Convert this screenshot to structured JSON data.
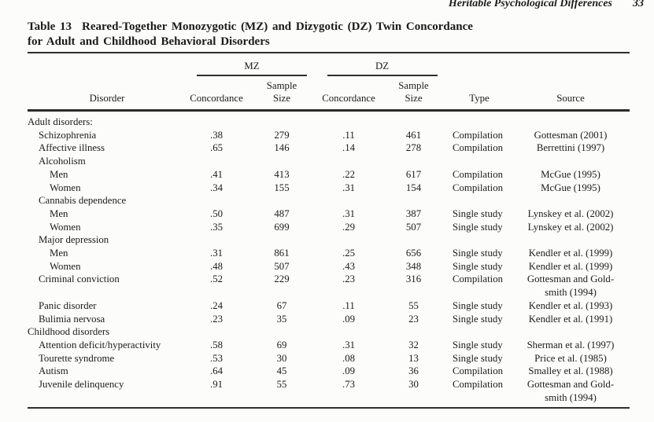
{
  "page": {
    "running_head": "Heritable Psychological Differences",
    "page_number": "33"
  },
  "table": {
    "label": "Table 13",
    "title_line1": "Reared-Together Monozygotic (MZ) and Dizygotic (DZ) Twin Concordance",
    "title_line2": "for Adult and Childhood Behavioral Disorders",
    "group_mz": "MZ",
    "group_dz": "DZ",
    "headers": {
      "disorder": "Disorder",
      "mz_concordance": "Concordance",
      "dz_concordance": "Concordance",
      "mz_sample": "Sample",
      "mz_size": "Size",
      "dz_sample": "Sample",
      "dz_size": "Size",
      "type": "Type",
      "source": "Source"
    },
    "rows": [
      {
        "indent": 0,
        "label": "Adult disorders:"
      },
      {
        "indent": 1,
        "label": "Schizophrenia",
        "mz_c": ".38",
        "mz_n": "279",
        "dz_c": ".11",
        "dz_n": "461",
        "type": "Compilation",
        "source": "Gottesman (2001)"
      },
      {
        "indent": 1,
        "label": "Affective illness",
        "mz_c": ".65",
        "mz_n": "146",
        "dz_c": ".14",
        "dz_n": "278",
        "type": "Compilation",
        "source": "Berrettini (1997)"
      },
      {
        "indent": 1,
        "label": "Alcoholism"
      },
      {
        "indent": 2,
        "label": "Men",
        "mz_c": ".41",
        "mz_n": "413",
        "dz_c": ".22",
        "dz_n": "617",
        "type": "Compilation",
        "source": "McGue (1995)"
      },
      {
        "indent": 2,
        "label": "Women",
        "mz_c": ".34",
        "mz_n": "155",
        "dz_c": ".31",
        "dz_n": "154",
        "type": "Compilation",
        "source": "McGue (1995)"
      },
      {
        "indent": 1,
        "label": "Cannabis dependence"
      },
      {
        "indent": 2,
        "label": "Men",
        "mz_c": ".50",
        "mz_n": "487",
        "dz_c": ".31",
        "dz_n": "387",
        "type": "Single study",
        "source": "Lynskey et al. (2002)"
      },
      {
        "indent": 2,
        "label": "Women",
        "mz_c": ".35",
        "mz_n": "699",
        "dz_c": ".29",
        "dz_n": "507",
        "type": "Single study",
        "source": "Lynskey et al. (2002)"
      },
      {
        "indent": 1,
        "label": "Major depression"
      },
      {
        "indent": 2,
        "label": "Men",
        "mz_c": ".31",
        "mz_n": "861",
        "dz_c": ".25",
        "dz_n": "656",
        "type": "Single study",
        "source": "Kendler et al. (1999)"
      },
      {
        "indent": 2,
        "label": "Women",
        "mz_c": ".48",
        "mz_n": "507",
        "dz_c": ".43",
        "dz_n": "348",
        "type": "Single study",
        "source": "Kendler et al. (1999)"
      },
      {
        "indent": 1,
        "label": "Criminal conviction",
        "mz_c": ".52",
        "mz_n": "229",
        "dz_c": ".23",
        "dz_n": "316",
        "type": "Compilation",
        "source": "Gottesman and Gold-",
        "source2": "smith (1994)"
      },
      {
        "indent": 1,
        "label": "Panic disorder",
        "mz_c": ".24",
        "mz_n": "67",
        "dz_c": ".11",
        "dz_n": "55",
        "type": "Single study",
        "source": "Kendler et al. (1993)"
      },
      {
        "indent": 1,
        "label": "Bulimia nervosa",
        "mz_c": ".23",
        "mz_n": "35",
        "dz_c": ".09",
        "dz_n": "23",
        "type": "Single study",
        "source": "Kendler et al. (1991)"
      },
      {
        "indent": 0,
        "label": "Childhood disorders"
      },
      {
        "indent": 1,
        "label": "Attention deficit/hyperactivity",
        "mz_c": ".58",
        "mz_n": "69",
        "dz_c": ".31",
        "dz_n": "32",
        "type": "Single study",
        "source": "Sherman et al. (1997)"
      },
      {
        "indent": 1,
        "label": "Tourette syndrome",
        "mz_c": ".53",
        "mz_n": "30",
        "dz_c": ".08",
        "dz_n": "13",
        "type": "Single study",
        "source": "Price et al. (1985)"
      },
      {
        "indent": 1,
        "label": "Autism",
        "mz_c": ".64",
        "mz_n": "45",
        "dz_c": ".09",
        "dz_n": "36",
        "type": "Compilation",
        "source": "Smalley et al. (1988)"
      },
      {
        "indent": 1,
        "label": "Juvenile delinquency",
        "mz_c": ".91",
        "mz_n": "55",
        "dz_c": ".73",
        "dz_n": "30",
        "type": "Compilation",
        "source": "Gottesman and Gold-",
        "source2": "smith (1994)"
      }
    ]
  }
}
